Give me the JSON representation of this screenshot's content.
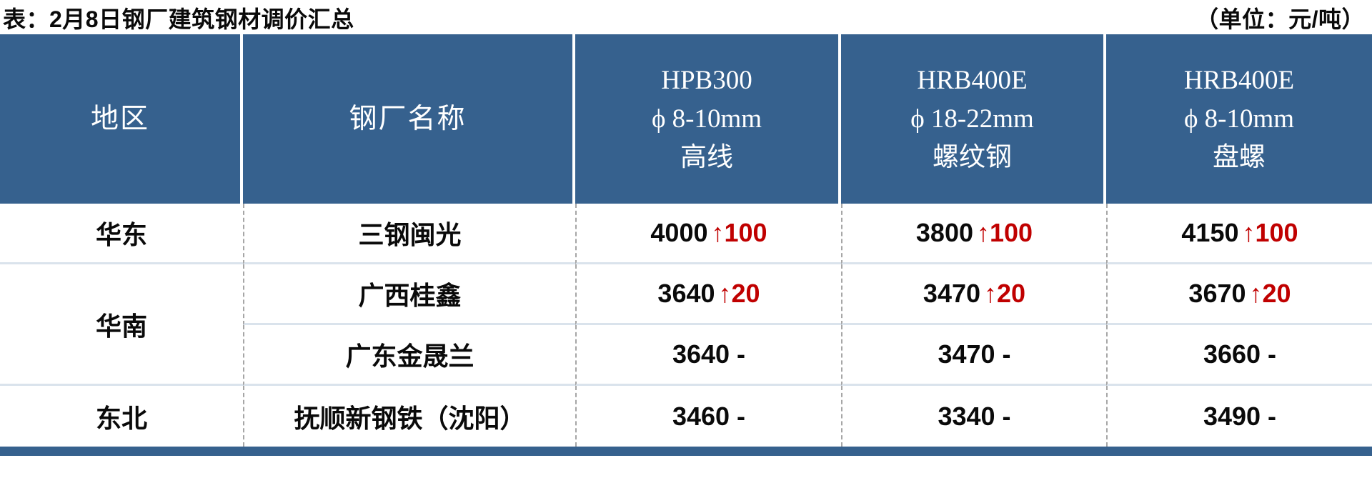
{
  "title": "表：2月8日钢厂建筑钢材调价汇总",
  "unit": "（单位：元/吨）",
  "colors": {
    "header_bg": "#36618E",
    "up_red": "#C00000",
    "row_line": "#DAE3EC",
    "divider_gray": "#A6A6A6",
    "bottom_bar": "#36618E"
  },
  "table": {
    "headers": {
      "region": "地区",
      "mill": "钢厂名称",
      "col3": [
        "HPB300",
        "ϕ 8-10mm",
        "高线"
      ],
      "col4": [
        "HRB400E",
        "ϕ 18-22mm",
        "螺纹钢"
      ],
      "col5": [
        "HRB400E",
        "ϕ 8-10mm",
        "盘螺"
      ]
    },
    "regions": {
      "huadong": "华东",
      "huanan": "华南",
      "dongbei": "东北"
    },
    "rows": [
      {
        "region": "华东",
        "mill": "三钢闽光",
        "prices": [
          {
            "value": "4000",
            "change": "↑100",
            "up": true
          },
          {
            "value": "3800",
            "change": "↑100",
            "up": true
          },
          {
            "value": "4150",
            "change": "↑100",
            "up": true
          }
        ]
      },
      {
        "region": "华南",
        "mill": "广西桂鑫",
        "prices": [
          {
            "value": "3640",
            "change": "↑20",
            "up": true
          },
          {
            "value": "3470",
            "change": "↑20",
            "up": true
          },
          {
            "value": "3670",
            "change": "↑20",
            "up": true
          }
        ]
      },
      {
        "region": "华南",
        "mill": "广东金晟兰",
        "prices": [
          {
            "value": "3640",
            "change": "-",
            "up": false
          },
          {
            "value": "3470",
            "change": "-",
            "up": false
          },
          {
            "value": "3660",
            "change": "-",
            "up": false
          }
        ]
      },
      {
        "region": "东北",
        "mill": "抚顺新钢铁（沈阳）",
        "prices": [
          {
            "value": "3460",
            "change": "-",
            "up": false
          },
          {
            "value": "3340",
            "change": "-",
            "up": false
          },
          {
            "value": "3490",
            "change": "-",
            "up": false
          }
        ]
      }
    ]
  }
}
